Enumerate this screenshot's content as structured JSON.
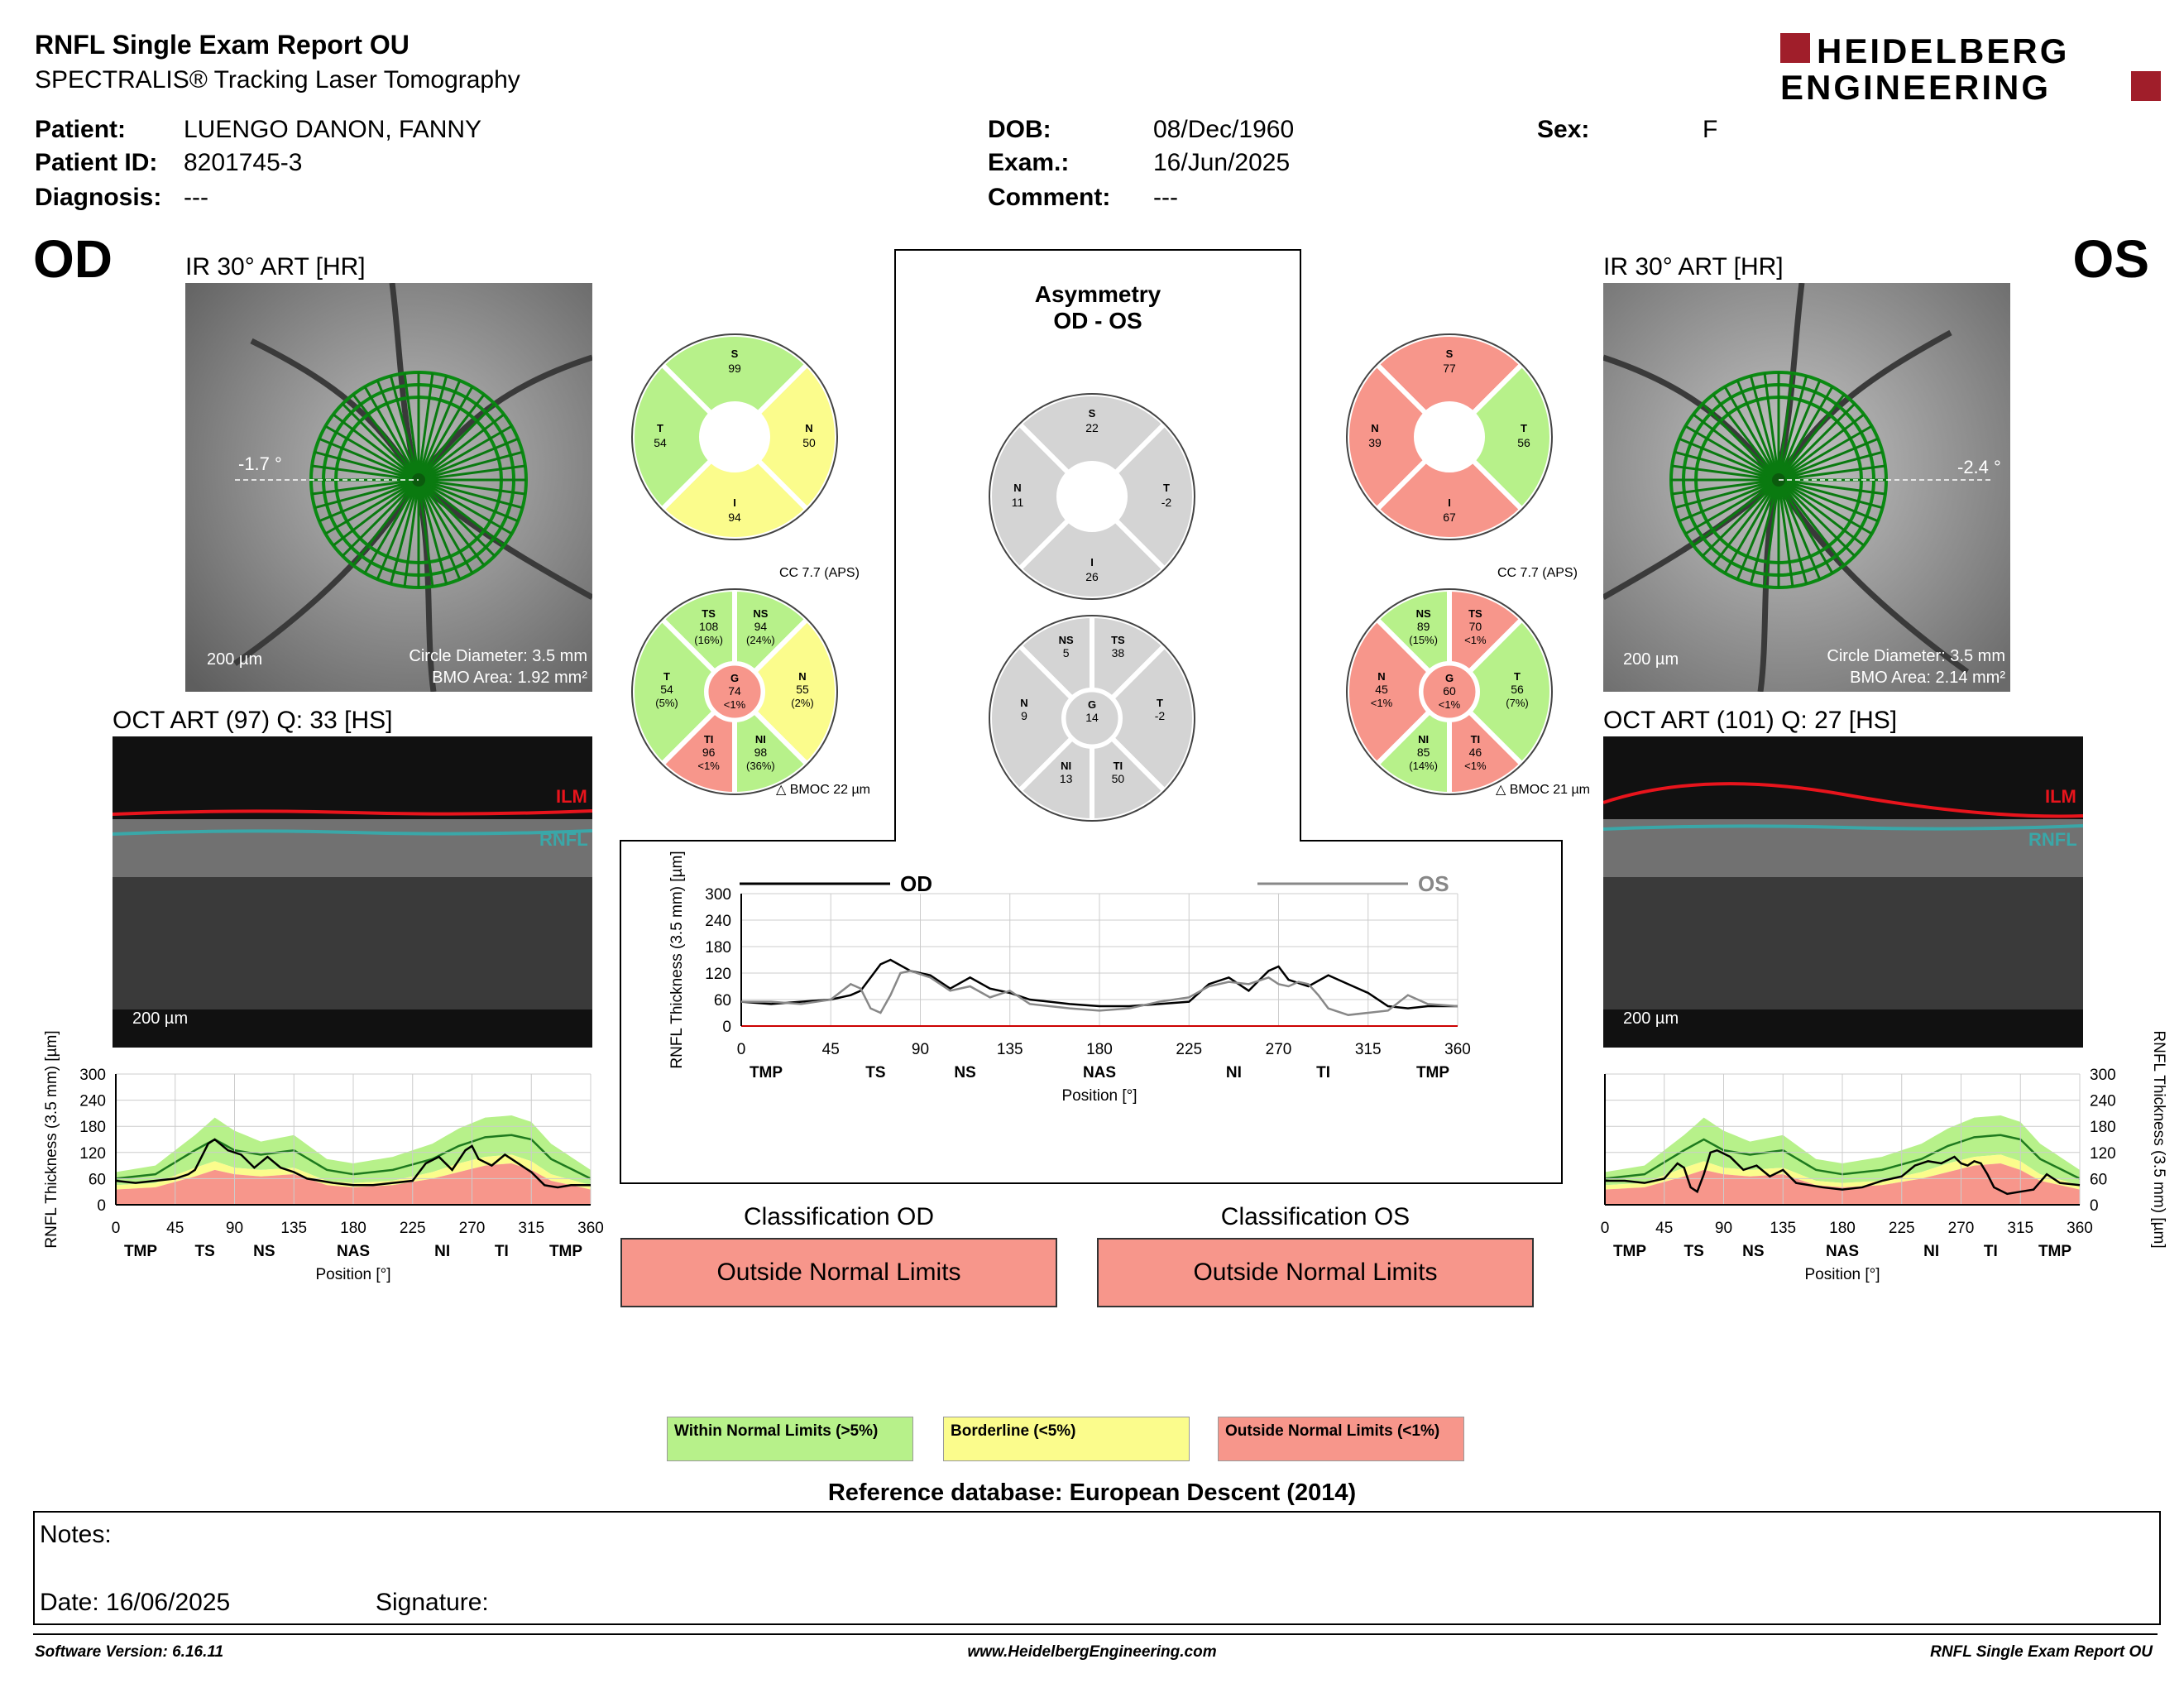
{
  "header": {
    "title": "RNFL Single Exam Report OU",
    "subtitle": "SPECTRALIS® Tracking Laser Tomography",
    "logo_line1": "HEIDELBERG",
    "logo_line2": "ENGINEERING"
  },
  "patient": {
    "patient_label": "Patient:",
    "patient_value": "LUENGO DANON, FANNY",
    "id_label": "Patient ID:",
    "id_value": "8201745-3",
    "diagnosis_label": "Diagnosis:",
    "diagnosis_value": "---",
    "dob_label": "DOB:",
    "dob_value": "08/Dec/1960",
    "exam_label": "Exam.:",
    "exam_value": "16/Jun/2025",
    "comment_label": "Comment:",
    "comment_value": "---",
    "sex_label": "Sex:",
    "sex_value": "F"
  },
  "od": {
    "eye": "OD",
    "ir_label": "IR 30° ART [HR]",
    "angle": "-1.7 °",
    "scale": "200 µm",
    "circle_diameter": "Circle Diameter: 3.5 mm",
    "bmo_area": "BMO Area: 1.92 mm²",
    "oct_label": "OCT ART (97) Q: 33 [HS]",
    "oct_scale": "200 µm",
    "ilm": "ILM",
    "rnfl": "RNFL",
    "cc": "CC 7.7 (APS)",
    "bmoc": "BMOC 22 µm",
    "quad": {
      "S": "99",
      "T": "54",
      "N": "50",
      "I": "94"
    },
    "sect": {
      "TS": [
        "TS",
        "108",
        "(16%)"
      ],
      "NS": [
        "NS",
        "94",
        "(24%)"
      ],
      "T": [
        "T",
        "54",
        "(5%)"
      ],
      "G": [
        "G",
        "74",
        "<1%"
      ],
      "N": [
        "N",
        "55",
        "(2%)"
      ],
      "TI": [
        "TI",
        "96",
        "<1%"
      ],
      "NI": [
        "NI",
        "98",
        "(36%)"
      ]
    },
    "classification_title": "Classification OD",
    "classification": "Outside Normal Limits"
  },
  "os": {
    "eye": "OS",
    "ir_label": "IR 30° ART [HR]",
    "angle": "-2.4 °",
    "scale": "200 µm",
    "circle_diameter": "Circle Diameter: 3.5 mm",
    "bmo_area": "BMO Area: 2.14 mm²",
    "oct_label": "OCT ART (101) Q: 27 [HS]",
    "oct_scale": "200 µm",
    "ilm": "ILM",
    "rnfl": "RNFL",
    "cc": "CC 7.7 (APS)",
    "bmoc": "BMOC 21 µm",
    "quad": {
      "S": "77",
      "N": "39",
      "T": "56",
      "I": "67"
    },
    "sect": {
      "NS": [
        "NS",
        "89",
        "(15%)"
      ],
      "TS": [
        "TS",
        "70",
        "<1%"
      ],
      "N": [
        "N",
        "45",
        "<1%"
      ],
      "G": [
        "G",
        "60",
        "<1%"
      ],
      "T": [
        "T",
        "56",
        "(7%)"
      ],
      "NI": [
        "NI",
        "85",
        "(14%)"
      ],
      "TI": [
        "TI",
        "46",
        "<1%"
      ]
    },
    "classification_title": "Classification OS",
    "classification": "Outside Normal Limits"
  },
  "asymmetry": {
    "title1": "Asymmetry",
    "title2": "OD - OS",
    "quad": {
      "S": "22",
      "N": "11",
      "T": "-2",
      "I": "26"
    },
    "sect": {
      "NS": [
        "NS",
        "5"
      ],
      "TS": [
        "TS",
        "38"
      ],
      "N": [
        "N",
        "9"
      ],
      "G": [
        "G",
        "14"
      ],
      "T": [
        "T",
        "-2"
      ],
      "NI": [
        "NI",
        "13"
      ],
      "TI": [
        "TI",
        "50"
      ]
    }
  },
  "charts": {
    "ylabel": "RNFL Thickness (3.5 mm) [µm]",
    "xlabel": "Position [°]",
    "sector_labels": [
      "TMP",
      "TS",
      "NS",
      "NAS",
      "NI",
      "TI",
      "TMP"
    ],
    "legend_od": "OD",
    "legend_os": "OS"
  },
  "chart_data": [
    {
      "type": "line",
      "title": "",
      "xlabel": "Position [°]",
      "ylabel": "RNFL Thickness (3.5 mm) [µm]",
      "xlim": [
        0,
        360
      ],
      "ylim": [
        0,
        300
      ],
      "x_ticks": [
        "0",
        "45",
        "90",
        "135",
        "180",
        "225",
        "270",
        "315",
        "360"
      ],
      "y_ticks": [
        "0",
        "60",
        "120",
        "180",
        "240",
        "300"
      ],
      "series": [
        {
          "name": "OD",
          "x": [
            0,
            15,
            30,
            45,
            55,
            60,
            70,
            75,
            85,
            95,
            105,
            115,
            125,
            135,
            145,
            155,
            165,
            180,
            195,
            210,
            225,
            235,
            245,
            255,
            265,
            270,
            275,
            285,
            295,
            305,
            315,
            325,
            335,
            345,
            360
          ],
          "y": [
            55,
            50,
            55,
            60,
            70,
            80,
            140,
            150,
            125,
            115,
            85,
            110,
            85,
            75,
            60,
            55,
            50,
            45,
            45,
            50,
            55,
            95,
            110,
            80,
            125,
            135,
            105,
            90,
            115,
            95,
            75,
            45,
            40,
            45,
            45
          ]
        },
        {
          "name": "OS",
          "x": [
            0,
            15,
            30,
            45,
            55,
            60,
            65,
            70,
            75,
            80,
            85,
            95,
            105,
            115,
            125,
            135,
            145,
            155,
            165,
            180,
            195,
            210,
            225,
            235,
            245,
            255,
            265,
            270,
            275,
            280,
            285,
            290,
            295,
            305,
            315,
            325,
            335,
            345,
            360
          ],
          "y": [
            55,
            55,
            50,
            60,
            95,
            85,
            40,
            30,
            70,
            120,
            125,
            110,
            80,
            90,
            65,
            80,
            50,
            45,
            40,
            35,
            40,
            55,
            65,
            90,
            100,
            95,
            110,
            95,
            90,
            100,
            95,
            70,
            40,
            25,
            30,
            35,
            70,
            50,
            45
          ]
        }
      ]
    },
    {
      "type": "area",
      "title": "",
      "xlabel": "Position [°]",
      "ylabel": "RNFL Thickness (3.5 mm) [µm]",
      "xlim": [
        0,
        360
      ],
      "ylim": [
        0,
        300
      ],
      "x_ticks": [
        "0",
        "45",
        "90",
        "135",
        "180",
        "225",
        "270",
        "315",
        "360"
      ],
      "y_ticks": [
        "0",
        "60",
        "120",
        "180",
        "240",
        "300"
      ],
      "series": [
        {
          "name": "OD",
          "x": [
            0,
            15,
            30,
            45,
            55,
            60,
            70,
            75,
            85,
            95,
            105,
            115,
            125,
            135,
            145,
            155,
            165,
            180,
            195,
            210,
            225,
            235,
            245,
            255,
            265,
            270,
            275,
            285,
            295,
            305,
            315,
            325,
            335,
            345,
            360
          ],
          "y": [
            55,
            50,
            55,
            60,
            70,
            80,
            140,
            150,
            125,
            115,
            85,
            110,
            85,
            75,
            60,
            55,
            50,
            45,
            45,
            50,
            55,
            95,
            110,
            80,
            125,
            135,
            105,
            90,
            115,
            95,
            75,
            45,
            40,
            45,
            45
          ]
        }
      ]
    },
    {
      "type": "area",
      "title": "",
      "xlabel": "Position [°]",
      "ylabel": "RNFL Thickness (3.5 mm) [µm]",
      "xlim": [
        0,
        360
      ],
      "ylim": [
        0,
        300
      ],
      "x_ticks": [
        "0",
        "45",
        "90",
        "135",
        "180",
        "225",
        "270",
        "315",
        "360"
      ],
      "y_ticks": [
        "0",
        "60",
        "120",
        "180",
        "240",
        "300"
      ],
      "series": [
        {
          "name": "OS",
          "x": [
            0,
            15,
            30,
            45,
            55,
            60,
            65,
            70,
            75,
            80,
            85,
            95,
            105,
            115,
            125,
            135,
            145,
            155,
            165,
            180,
            195,
            210,
            225,
            235,
            245,
            255,
            265,
            270,
            275,
            280,
            285,
            290,
            295,
            305,
            315,
            325,
            335,
            345,
            360
          ],
          "y": [
            55,
            55,
            50,
            60,
            95,
            85,
            40,
            30,
            70,
            120,
            125,
            110,
            80,
            90,
            65,
            80,
            50,
            45,
            40,
            35,
            40,
            55,
            65,
            90,
            100,
            95,
            110,
            95,
            90,
            100,
            95,
            70,
            40,
            25,
            30,
            35,
            70,
            50,
            45
          ]
        }
      ]
    }
  ],
  "normative": {
    "x": [
      0,
      30,
      60,
      75,
      90,
      110,
      135,
      160,
      180,
      210,
      240,
      260,
      280,
      300,
      315,
      330,
      360
    ],
    "p95": [
      75,
      90,
      160,
      200,
      170,
      145,
      160,
      105,
      95,
      110,
      140,
      175,
      200,
      205,
      190,
      140,
      80
    ],
    "mean": [
      60,
      70,
      125,
      150,
      125,
      115,
      125,
      80,
      70,
      80,
      105,
      135,
      155,
      160,
      150,
      105,
      60
    ],
    "p5": [
      45,
      50,
      85,
      100,
      85,
      80,
      85,
      55,
      50,
      55,
      75,
      95,
      110,
      115,
      100,
      70,
      45
    ],
    "p1": [
      35,
      40,
      65,
      80,
      70,
      65,
      70,
      45,
      40,
      45,
      60,
      75,
      90,
      95,
      80,
      55,
      35
    ]
  },
  "legend": {
    "within": "Within Normal Limits (>5%)",
    "borderline": "Borderline (<5%)",
    "outside": "Outside Normal Limits (<1%)",
    "reference": "Reference database: European Descent (2014)"
  },
  "notes": {
    "notes_label": "Notes:",
    "date_label": "Date: 16/06/2025",
    "signature_label": "Signature:"
  },
  "footer": {
    "software": "Software Version: 6.16.11",
    "website": "www.HeidelbergEngineering.com",
    "report": "RNFL Single Exam Report OU"
  },
  "colors": {
    "green": "#b7f18a",
    "yellow": "#fbfc8c",
    "red": "#f7968b",
    "grey": "#d4d4d4",
    "ilm": "#e8141c",
    "rnfl": "#3aa7a8",
    "brand": "#a01e2a"
  }
}
